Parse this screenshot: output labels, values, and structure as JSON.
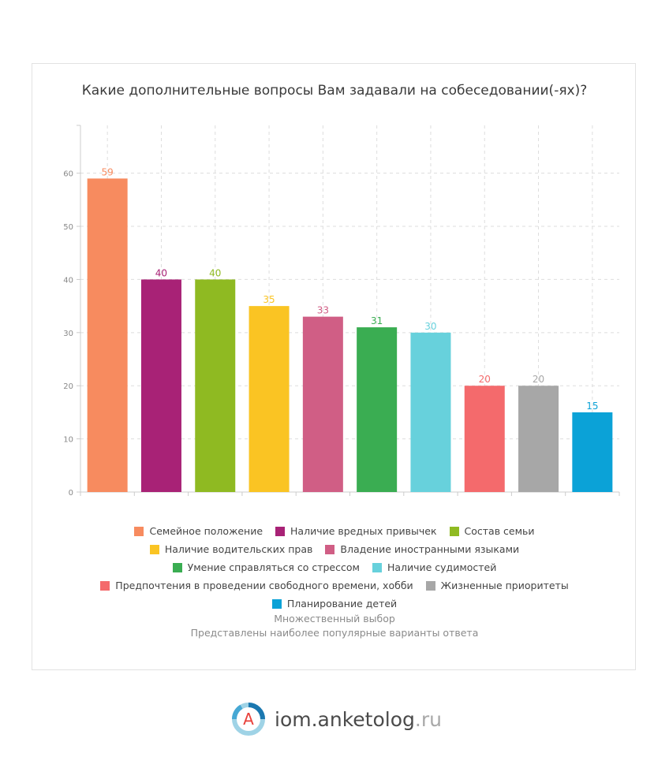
{
  "chart_data": {
    "type": "bar",
    "title": "Какие дополнительные вопросы Вам задавали на собеседовании(-ях)?",
    "categories": [
      "Семейное положение",
      "Наличие вредных привычек",
      "Состав семьи",
      "Наличие водительских прав",
      "Владение иностранными языками",
      "Умение справляться со стрессом",
      "Наличие судимостей",
      "Предпочтения в проведении свободного времени, хобби",
      "Жизненные приоритеты",
      "Планирование детей"
    ],
    "values": [
      59,
      40,
      40,
      35,
      33,
      31,
      30,
      20,
      20,
      15
    ],
    "colors": [
      "#f78b5f",
      "#a82276",
      "#8fba22",
      "#fac423",
      "#d05e85",
      "#3aad52",
      "#67d1dc",
      "#f46a6c",
      "#a7a7a7",
      "#0ba2d7"
    ],
    "yticks": [
      0,
      10,
      20,
      30,
      40,
      50,
      60
    ],
    "ylim": [
      0,
      69
    ],
    "grid": true,
    "legend_position": "bottom"
  },
  "notes": {
    "line1": "Множественный выбор",
    "line2": "Представлены наиболее популярные варианты ответа"
  },
  "brand": {
    "logo_letter": "A",
    "name": "iom.anketolog",
    "tld": ".ru"
  }
}
